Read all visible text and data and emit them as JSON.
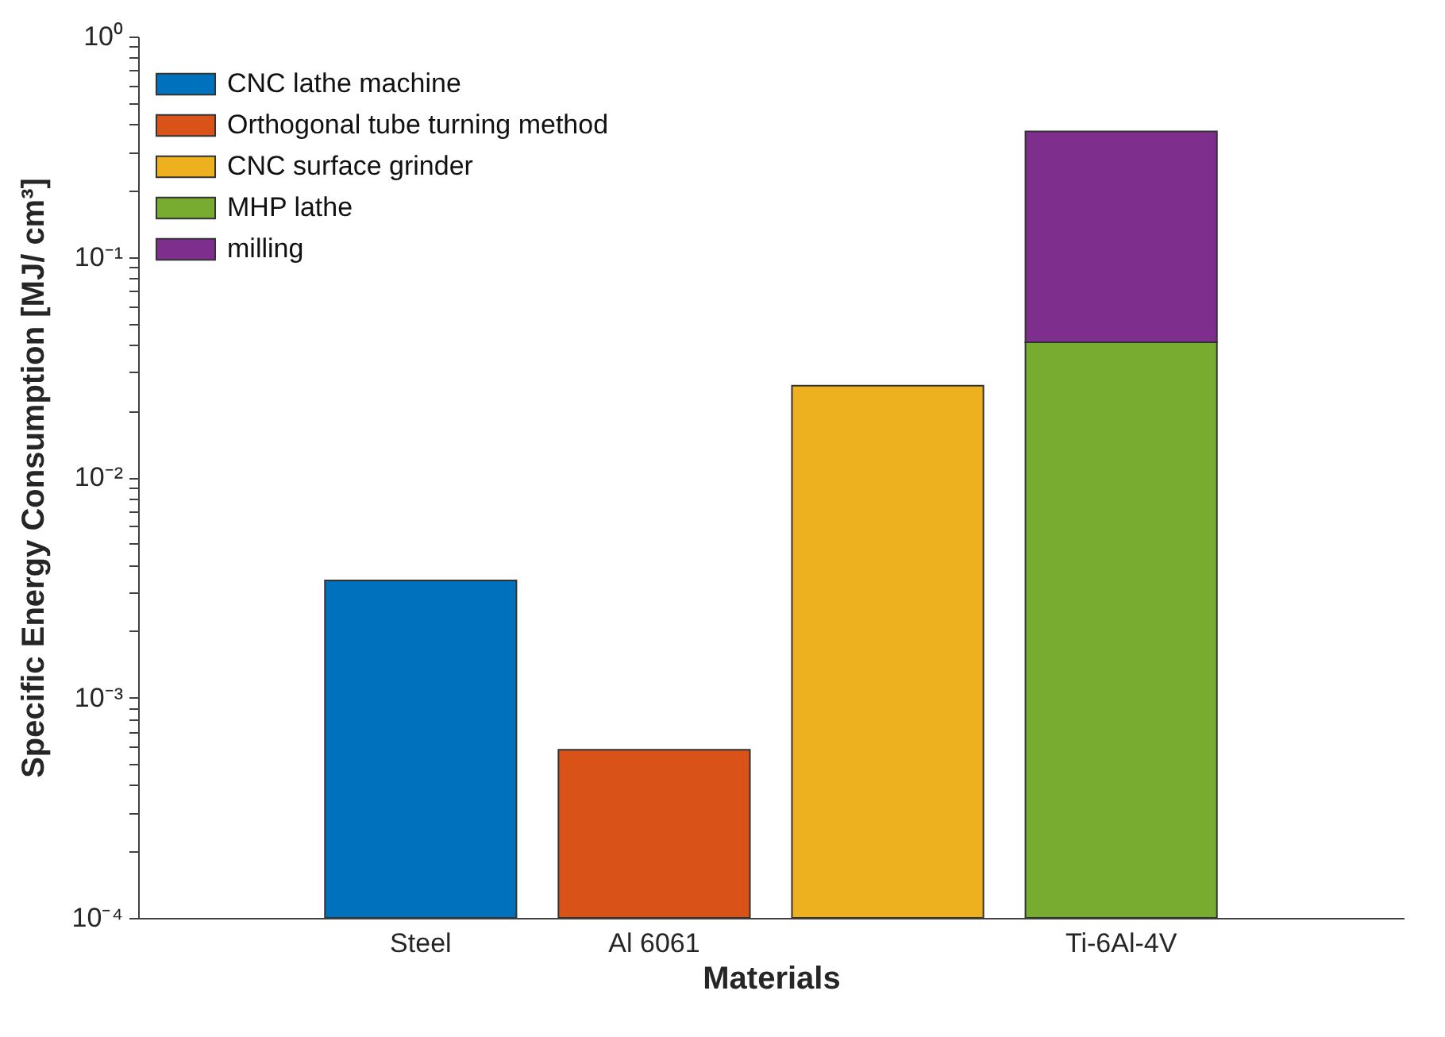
{
  "chart_data": {
    "type": "bar",
    "stacked": true,
    "xlabel": "Materials",
    "ylabel": "Specific Energy Consumption [MJ/ cm³]",
    "categories": [
      "Steel",
      "Al 6061",
      null,
      "Ti-6Al-4V"
    ],
    "series": [
      {
        "name": "CNC lathe machine",
        "color": "#0072bd",
        "values": [
          0.0034,
          null,
          null,
          null
        ]
      },
      {
        "name": "Orthogonal tube turning method",
        "color": "#d95319",
        "values": [
          null,
          0.00058,
          null,
          null
        ]
      },
      {
        "name": "CNC surface grinder",
        "color": "#edb120",
        "values": [
          null,
          null,
          0.026,
          null
        ]
      },
      {
        "name": "MHP lathe",
        "color": "#77ac30",
        "values": [
          null,
          null,
          null,
          0.041
        ]
      },
      {
        "name": "milling",
        "color": "#7e2f8e",
        "values": [
          null,
          null,
          null,
          0.33
        ]
      }
    ],
    "log": true,
    "ylim": [
      0.0001,
      1
    ],
    "yticks": [
      {
        "value": 0.0001,
        "label": "10⁻⁴"
      },
      {
        "value": 0.0002,
        "label": null
      },
      {
        "value": 0.0003,
        "label": null
      },
      {
        "value": 0.0004,
        "label": null
      },
      {
        "value": 0.0005,
        "label": null
      },
      {
        "value": 0.0006,
        "label": null
      },
      {
        "value": 0.0007,
        "label": null
      },
      {
        "value": 0.0008,
        "label": null
      },
      {
        "value": 0.0009,
        "label": null
      },
      {
        "value": 0.001,
        "label": "10⁻³"
      },
      {
        "value": 0.002,
        "label": null
      },
      {
        "value": 0.003,
        "label": null
      },
      {
        "value": 0.004,
        "label": null
      },
      {
        "value": 0.005,
        "label": null
      },
      {
        "value": 0.006,
        "label": null
      },
      {
        "value": 0.007,
        "label": null
      },
      {
        "value": 0.008,
        "label": null
      },
      {
        "value": 0.009,
        "label": null
      },
      {
        "value": 0.01,
        "label": "10⁻²"
      },
      {
        "value": 0.02,
        "label": null
      },
      {
        "value": 0.03,
        "label": null
      },
      {
        "value": 0.04,
        "label": null
      },
      {
        "value": 0.05,
        "label": null
      },
      {
        "value": 0.06,
        "label": null
      },
      {
        "value": 0.07,
        "label": null
      },
      {
        "value": 0.08,
        "label": null
      },
      {
        "value": 0.09,
        "label": null
      },
      {
        "value": 0.1,
        "label": "10⁻¹"
      },
      {
        "value": 0.2,
        "label": null
      },
      {
        "value": 0.3,
        "label": null
      },
      {
        "value": 0.4,
        "label": null
      },
      {
        "value": 0.5,
        "label": null
      },
      {
        "value": 0.6,
        "label": null
      },
      {
        "value": 0.7,
        "label": null
      },
      {
        "value": 0.8,
        "label": null
      },
      {
        "value": 0.9,
        "label": null
      },
      {
        "value": 1,
        "label": "10⁰"
      }
    ],
    "grid": false,
    "legend": "top left"
  }
}
